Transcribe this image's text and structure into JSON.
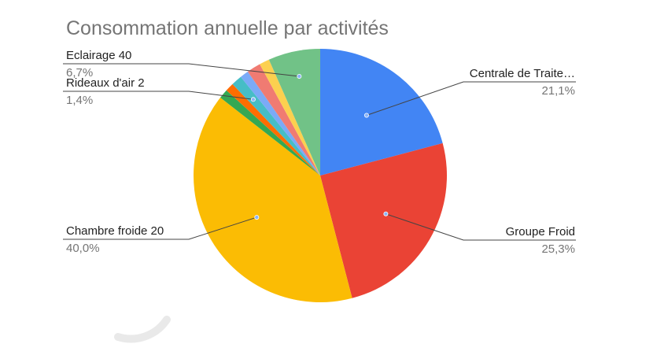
{
  "chart_data": {
    "type": "pie",
    "title": "Consommation annuelle par activités",
    "slices": [
      {
        "label": "Centrale de Traite…",
        "percent_label": "21,1%",
        "value": 21.1,
        "color": "#4285f4"
      },
      {
        "label": "Groupe Froid",
        "percent_label": "25,3%",
        "value": 25.3,
        "color": "#ea4335"
      },
      {
        "label": "Chambre froide 20",
        "percent_label": "40,0%",
        "value": 40.0,
        "color": "#fbbc04"
      },
      {
        "label": "",
        "percent_label": "",
        "value": 1.2,
        "color": "#34a853"
      },
      {
        "label": "",
        "percent_label": "",
        "value": 1.1,
        "color": "#ff6d01"
      },
      {
        "label": "Rideaux d'air 2",
        "percent_label": "1,4%",
        "value": 1.4,
        "color": "#46bdc6"
      },
      {
        "label": "",
        "percent_label": "",
        "value": 1.1,
        "color": "#7baaf7"
      },
      {
        "label": "",
        "percent_label": "",
        "value": 1.8,
        "color": "#f07b72"
      },
      {
        "label": "",
        "percent_label": "",
        "value": 1.3,
        "color": "#fcd04f"
      },
      {
        "label": "Eclairage 40",
        "percent_label": "6,7%",
        "value": 6.7,
        "color": "#71c287"
      }
    ]
  }
}
